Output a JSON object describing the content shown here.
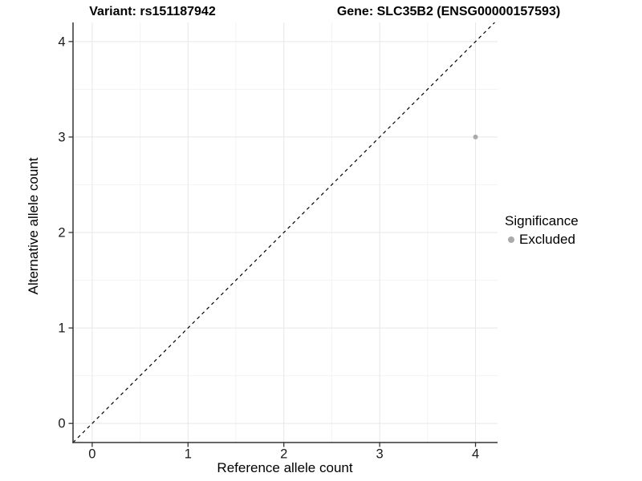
{
  "header": {
    "variant_title": "Variant: rs151187942",
    "gene_title": "Gene: SLC35B2 (ENSG00000157593)"
  },
  "chart_data": {
    "type": "scatter",
    "xlabel": "Reference allele count",
    "ylabel": "Alternative allele count",
    "xlim": [
      -0.2,
      4.23
    ],
    "ylim": [
      -0.2,
      4.2
    ],
    "xticks": [
      0,
      1,
      2,
      3,
      4
    ],
    "yticks": [
      0,
      1,
      2,
      3,
      4
    ],
    "minor_xticks": [
      0.5,
      1.5,
      2.5,
      3.5
    ],
    "minor_yticks": [
      0.5,
      1.5,
      2.5,
      3.5
    ],
    "grid": true,
    "legend_position": "right",
    "points": [
      {
        "x": 4,
        "y": 3,
        "series": "Excluded"
      }
    ],
    "reference_line": {
      "slope": 1,
      "intercept": 0,
      "style": "dashed",
      "color": "#000000"
    },
    "legend": {
      "title": "Significance",
      "entries": [
        {
          "label": "Excluded",
          "color": "#aaaaaa",
          "marker": "circle"
        }
      ]
    },
    "colors": {
      "point": "#aaaaaa",
      "grid_major": "#e7e7e7",
      "grid_minor": "#f2f2f2",
      "axis_line": "#333333",
      "tick_label": "#1a1a1a"
    }
  }
}
